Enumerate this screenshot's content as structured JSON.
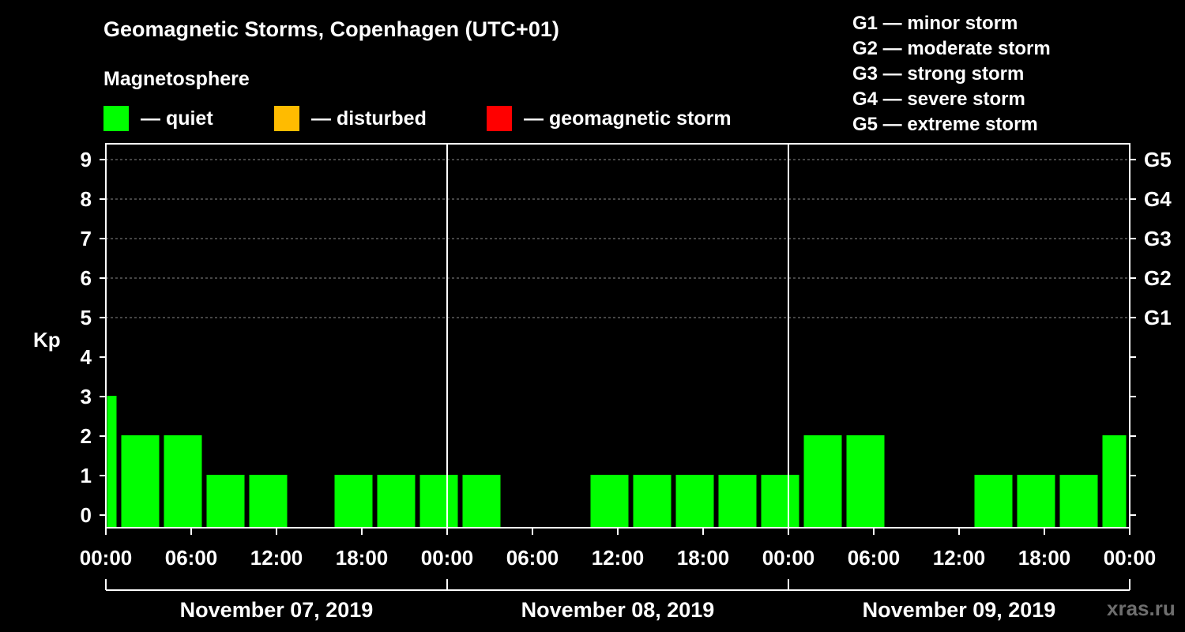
{
  "title": "Geomagnetic Storms, Copenhagen (UTC+01)",
  "subtitle": "Magnetosphere",
  "legend": [
    {
      "label": "— quiet",
      "color": "#00ff00"
    },
    {
      "label": "— disturbed",
      "color": "#ffbb00"
    },
    {
      "label": "— geomagnetic storm",
      "color": "#ff0000"
    }
  ],
  "storm_scale": [
    "G1 — minor storm",
    "G2 — moderate storm",
    "G3 — strong storm",
    "G4 — severe storm",
    "G5 — extreme storm"
  ],
  "watermark": "xras.ru",
  "chart_data": {
    "type": "bar",
    "title": "Geomagnetic Storms, Copenhagen (UTC+01)",
    "ylabel": "Kp",
    "ylim": [
      0,
      9
    ],
    "y_ticks": [
      "0",
      "1",
      "2",
      "3",
      "4",
      "5",
      "6",
      "7",
      "8",
      "9"
    ],
    "right_ticks": [
      {
        "kp": 5,
        "label": "G1"
      },
      {
        "kp": 6,
        "label": "G2"
      },
      {
        "kp": 7,
        "label": "G3"
      },
      {
        "kp": 8,
        "label": "G4"
      },
      {
        "kp": 9,
        "label": "G5"
      }
    ],
    "x_range_hours": [
      0,
      72
    ],
    "x_ticks": [
      "00:00",
      "06:00",
      "12:00",
      "18:00",
      "00:00",
      "06:00",
      "12:00",
      "18:00",
      "00:00",
      "06:00",
      "12:00",
      "18:00",
      "00:00"
    ],
    "days": [
      "November 07, 2019",
      "November 08, 2019",
      "November 09, 2019"
    ],
    "interval_hours": 3,
    "bars": [
      {
        "start": 0,
        "end": 1,
        "kp": 3
      },
      {
        "start": 1,
        "end": 4,
        "kp": 2
      },
      {
        "start": 4,
        "end": 7,
        "kp": 2
      },
      {
        "start": 7,
        "end": 10,
        "kp": 1
      },
      {
        "start": 10,
        "end": 13,
        "kp": 1
      },
      {
        "start": 13,
        "end": 16,
        "kp": 0
      },
      {
        "start": 16,
        "end": 19,
        "kp": 1
      },
      {
        "start": 19,
        "end": 22,
        "kp": 1
      },
      {
        "start": 22,
        "end": 25,
        "kp": 1
      },
      {
        "start": 25,
        "end": 28,
        "kp": 1
      },
      {
        "start": 28,
        "end": 31,
        "kp": 0
      },
      {
        "start": 31,
        "end": 34,
        "kp": 0
      },
      {
        "start": 34,
        "end": 37,
        "kp": 1
      },
      {
        "start": 37,
        "end": 40,
        "kp": 1
      },
      {
        "start": 40,
        "end": 43,
        "kp": 1
      },
      {
        "start": 43,
        "end": 46,
        "kp": 1
      },
      {
        "start": 46,
        "end": 49,
        "kp": 1
      },
      {
        "start": 49,
        "end": 52,
        "kp": 2
      },
      {
        "start": 52,
        "end": 55,
        "kp": 2
      },
      {
        "start": 55,
        "end": 58,
        "kp": 0
      },
      {
        "start": 58,
        "end": 61,
        "kp": 0
      },
      {
        "start": 61,
        "end": 64,
        "kp": 1
      },
      {
        "start": 64,
        "end": 67,
        "kp": 1
      },
      {
        "start": 67,
        "end": 70,
        "kp": 1
      },
      {
        "start": 70,
        "end": 72,
        "kp": 2
      }
    ],
    "bar_color": "#00ff00"
  }
}
